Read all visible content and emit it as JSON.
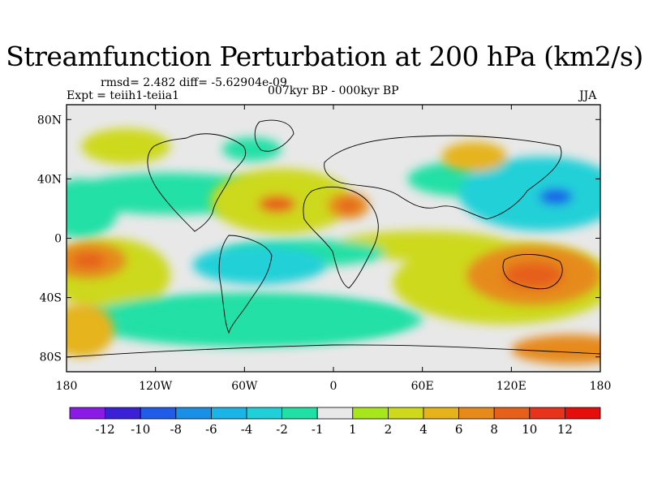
{
  "chart_data": {
    "type": "heatmap",
    "title": "Streamfunction Perturbation at 200 hPa (km2/s)",
    "subtitle_left_1": "rmsd= 2.482 diff= -5.62904e-09",
    "subtitle_left_2": "Expt = teiih1-teiia1",
    "subtitle_center": "007kyr BP - 000kyr BP",
    "subtitle_right": "JJA",
    "x_ticks": [
      "180",
      "120W",
      "60W",
      "0",
      "60E",
      "120E",
      "180"
    ],
    "x_tick_values": [
      -180,
      -120,
      -60,
      0,
      60,
      120,
      180
    ],
    "y_ticks": [
      "80N",
      "40N",
      "0",
      "40S",
      "80S"
    ],
    "y_tick_values": [
      80,
      40,
      0,
      -40,
      -80
    ],
    "xlim": [
      -180,
      180
    ],
    "ylim": [
      -90,
      90
    ],
    "colorbar": {
      "labels": [
        "-12",
        "-10",
        "-8",
        "-6",
        "-4",
        "-2",
        "-1",
        "1",
        "2",
        "4",
        "6",
        "8",
        "10",
        "12"
      ],
      "colors": [
        "#8a1ae6",
        "#3a20d6",
        "#1f5ce8",
        "#1a8fe6",
        "#1ab5e6",
        "#20d0d8",
        "#20e0a6",
        "#e8e8e8",
        "#a6e61a",
        "#cdd91a",
        "#e6b41a",
        "#e68a1a",
        "#e6601a",
        "#e6331a",
        "#e60d0d"
      ]
    },
    "regions": [
      {
        "name": "N Atlantic high",
        "lon": -38,
        "lat": 23,
        "rx": 28,
        "ry": 13,
        "level": 6
      },
      {
        "name": "N Atlantic ring",
        "lon": -35,
        "lat": 25,
        "rx": 48,
        "ry": 22,
        "level": 2
      },
      {
        "name": "N Africa high",
        "lon": 10,
        "lat": 22,
        "rx": 14,
        "ry": 9,
        "level": 6
      },
      {
        "name": "NW Pacific low",
        "lon": 150,
        "lat": 28,
        "rx": 25,
        "ry": 12,
        "level": -8
      },
      {
        "name": "N Pacific low ring",
        "lon": 140,
        "lat": 30,
        "rx": 55,
        "ry": 25,
        "level": -4
      },
      {
        "name": "Arctic high",
        "lon": -140,
        "lat": 62,
        "rx": 30,
        "ry": 12,
        "level": 2
      },
      {
        "name": "Siberia high",
        "lon": 95,
        "lat": 55,
        "rx": 22,
        "ry": 10,
        "level": 4
      },
      {
        "name": "S Atlantic low",
        "lon": -50,
        "lat": -18,
        "rx": 45,
        "ry": 13,
        "level": -4
      },
      {
        "name": "Australia high",
        "lon": 135,
        "lat": -25,
        "rx": 45,
        "ry": 20,
        "level": 6
      },
      {
        "name": "S Pacific high",
        "lon": -165,
        "lat": -15,
        "rx": 25,
        "ry": 12,
        "level": 6
      },
      {
        "name": "Southern Ocean low",
        "lon": -40,
        "lat": -55,
        "rx": 100,
        "ry": 14,
        "level": -2
      },
      {
        "name": "SE Pacific high",
        "lon": -170,
        "lat": -62,
        "rx": 22,
        "ry": 18,
        "level": 4
      }
    ]
  }
}
